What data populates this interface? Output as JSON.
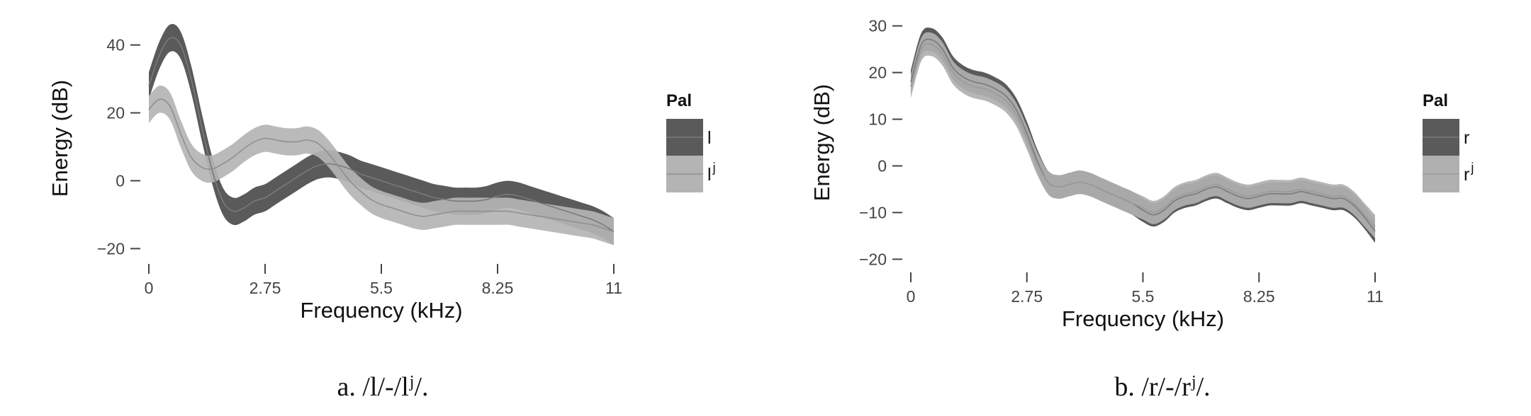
{
  "chart_data": [
    {
      "type": "line",
      "title": "",
      "xlabel": "Frequency (kHz)",
      "ylabel": "Energy (dB)",
      "xlim": [
        0,
        11
      ],
      "ylim": [
        -22,
        47
      ],
      "xticks": [
        0,
        2.75,
        5.5,
        8.25,
        11
      ],
      "xtick_labels": [
        "0",
        "2.75",
        "5.5",
        "8.25",
        "11"
      ],
      "yticks": [
        -20,
        0,
        20,
        40
      ],
      "ytick_labels": [
        "−20",
        "0",
        "20",
        "40"
      ],
      "grid": false,
      "legend": {
        "title": "Pal",
        "position": "right"
      },
      "caption": {
        "prefix": "a. /l/-/l",
        "sup": "j",
        "suffix": "/."
      },
      "series": [
        {
          "name": "l",
          "sup": "",
          "fill": "#5a5a5a",
          "line": "#7a7a7a",
          "x": [
            0,
            0.25,
            0.5,
            0.75,
            1.0,
            1.25,
            1.5,
            1.75,
            2.0,
            2.25,
            2.5,
            2.75,
            3.0,
            3.25,
            3.5,
            3.75,
            4.0,
            4.25,
            4.5,
            4.75,
            5.0,
            5.25,
            5.5,
            5.75,
            6.0,
            6.25,
            6.5,
            6.75,
            7.0,
            7.25,
            7.5,
            7.75,
            8.0,
            8.25,
            8.5,
            8.75,
            9.0,
            9.25,
            9.5,
            9.75,
            10.0,
            10.25,
            10.5,
            10.75,
            11.0
          ],
          "y": [
            28,
            37,
            42,
            40,
            30,
            16,
            3,
            -6,
            -9,
            -8,
            -6,
            -5,
            -3,
            -1,
            1,
            3,
            4.5,
            5,
            4.5,
            3.5,
            2,
            1,
            0,
            -1,
            -2,
            -3,
            -4,
            -5,
            -5.5,
            -6,
            -6,
            -6,
            -5.5,
            -4.5,
            -4,
            -4.5,
            -5.5,
            -6.5,
            -7.5,
            -8.5,
            -9.5,
            -10.5,
            -11.5,
            -13,
            -15
          ],
          "band": 4
        },
        {
          "name": "l",
          "sup": "j",
          "fill": "#b4b4b4",
          "line": "#8f8f8f",
          "x": [
            0,
            0.25,
            0.5,
            0.75,
            1.0,
            1.25,
            1.5,
            1.75,
            2.0,
            2.25,
            2.5,
            2.75,
            3.0,
            3.25,
            3.5,
            3.75,
            4.0,
            4.25,
            4.5,
            4.75,
            5.0,
            5.25,
            5.5,
            5.75,
            6.0,
            6.25,
            6.5,
            6.75,
            7.0,
            7.25,
            7.5,
            7.75,
            8.0,
            8.25,
            8.5,
            8.75,
            9.0,
            9.25,
            9.5,
            9.75,
            10.0,
            10.25,
            10.5,
            10.75,
            11.0
          ],
          "y": [
            21,
            24,
            22,
            14,
            7,
            4,
            3.5,
            5,
            7,
            9.5,
            11.5,
            12.5,
            12,
            11.5,
            11.5,
            12,
            11,
            8,
            4,
            0,
            -3,
            -5.5,
            -7,
            -8,
            -9,
            -10,
            -10.5,
            -10,
            -9.5,
            -9,
            -9,
            -9,
            -9,
            -9,
            -9,
            -9.5,
            -10,
            -10.5,
            -11,
            -11.5,
            -12,
            -12.5,
            -13,
            -14,
            -15
          ],
          "band": 4
        }
      ]
    },
    {
      "type": "line",
      "title": "",
      "xlabel": "Frequency (kHz)",
      "ylabel": "Energy (dB)",
      "xlim": [
        0,
        11
      ],
      "ylim": [
        -21,
        31
      ],
      "xticks": [
        0,
        2.75,
        5.5,
        8.25,
        11
      ],
      "xtick_labels": [
        "0",
        "2.75",
        "5.5",
        "8.25",
        "11"
      ],
      "yticks": [
        -20,
        -10,
        0,
        10,
        20,
        30
      ],
      "ytick_labels": [
        "−20",
        "−10",
        "0",
        "10",
        "20",
        "30"
      ],
      "grid": false,
      "legend": {
        "title": "Pal",
        "position": "right"
      },
      "caption": {
        "prefix": "b. /r/-/r",
        "sup": "j",
        "suffix": "/."
      },
      "series": [
        {
          "name": "r",
          "sup": "",
          "fill": "#5a5a5a",
          "line": "#7a7a7a",
          "x": [
            0,
            0.25,
            0.5,
            0.75,
            1.0,
            1.25,
            1.5,
            1.75,
            2.0,
            2.25,
            2.5,
            2.75,
            3.0,
            3.25,
            3.5,
            3.75,
            4.0,
            4.25,
            4.5,
            4.75,
            5.0,
            5.25,
            5.5,
            5.75,
            6.0,
            6.25,
            6.5,
            6.75,
            7.0,
            7.25,
            7.5,
            7.75,
            8.0,
            8.25,
            8.5,
            8.75,
            9.0,
            9.25,
            9.5,
            9.75,
            10.0,
            10.25,
            10.5,
            10.75,
            11.0
          ],
          "y": [
            18,
            26,
            27,
            25,
            21,
            19,
            18,
            17.5,
            16.5,
            15,
            12,
            7,
            1,
            -3.5,
            -4.5,
            -4,
            -3.5,
            -4,
            -5,
            -6,
            -7,
            -8,
            -9.5,
            -10.5,
            -9.5,
            -7.5,
            -6.5,
            -6,
            -5,
            -4.5,
            -5.5,
            -6.5,
            -7,
            -6.5,
            -6,
            -6,
            -6,
            -5.5,
            -6,
            -6.5,
            -7,
            -7,
            -8.5,
            -11,
            -14
          ],
          "band": 2.5
        },
        {
          "name": "r",
          "sup": "j",
          "fill": "#b0b0b0",
          "line": "#9a9a9a",
          "x": [
            0,
            0.25,
            0.5,
            0.75,
            1.0,
            1.25,
            1.5,
            1.75,
            2.0,
            2.25,
            2.5,
            2.75,
            3.0,
            3.25,
            3.5,
            3.75,
            4.0,
            4.25,
            4.5,
            4.75,
            5.0,
            5.25,
            5.5,
            5.75,
            6.0,
            6.25,
            6.5,
            6.75,
            7.0,
            7.25,
            7.5,
            7.75,
            8.0,
            8.25,
            8.5,
            8.75,
            9.0,
            9.25,
            9.5,
            9.75,
            10.0,
            10.25,
            10.5,
            10.75,
            11.0
          ],
          "y": [
            17,
            25,
            26,
            24,
            20,
            18,
            17,
            16.5,
            15.5,
            14,
            11,
            6,
            0.5,
            -3.5,
            -4.5,
            -4,
            -3.5,
            -4,
            -5,
            -6,
            -7,
            -8,
            -9,
            -10,
            -9,
            -7,
            -6,
            -5.5,
            -4.5,
            -4,
            -5,
            -6,
            -6.5,
            -6,
            -5.5,
            -5.5,
            -5.5,
            -5,
            -5.5,
            -6,
            -6.5,
            -6.5,
            -8,
            -10.5,
            -13
          ],
          "band": 2.5
        }
      ]
    }
  ]
}
